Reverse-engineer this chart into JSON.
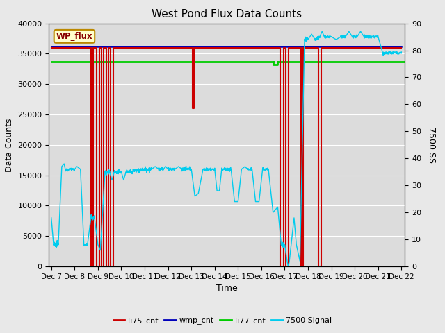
{
  "title": "West Pond Flux Data Counts",
  "xlabel": "Time",
  "ylabel_left": "Data Counts",
  "ylabel_right": "7500 SS",
  "ylim_left": [
    0,
    40000
  ],
  "ylim_right": [
    0,
    90
  ],
  "bg_color": "#e8e8e8",
  "plot_bg": "#dcdcdc",
  "annotation_text": "WP_flux",
  "annotation_bg": "#ffffcc",
  "annotation_border": "#bb8800",
  "x_tick_labels": [
    "Dec 7",
    "Dec 8",
    "Dec 9",
    "Dec 10",
    "Dec 11",
    "Dec 12",
    "Dec 13",
    "Dec 14",
    "Dec 15",
    "Dec 16",
    "Dec 17",
    "Dec 18",
    "Dec 19",
    "Dec 20",
    "Dec 21",
    "Dec 22"
  ],
  "x_tick_positions": [
    0,
    1,
    2,
    3,
    4,
    5,
    6,
    7,
    8,
    9,
    10,
    11,
    12,
    13,
    14,
    15
  ],
  "colors": {
    "li75_cnt": "#cc0000",
    "wmp_cnt": "#0000bb",
    "li77_cnt": "#00cc00",
    "signal7500": "#00ccee"
  },
  "wmp_cnt_value": 36200,
  "li77_cnt_value": 33700,
  "scale": 444.44
}
